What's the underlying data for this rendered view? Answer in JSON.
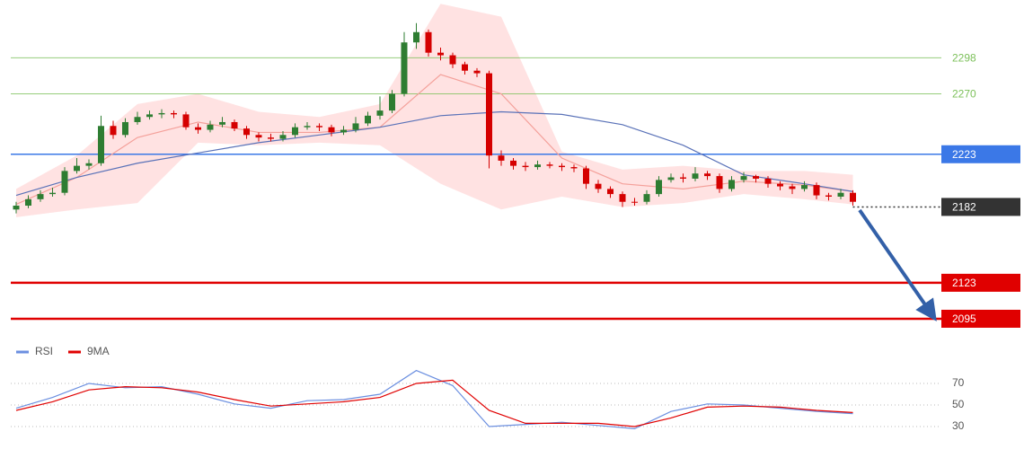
{
  "chart_data": [
    {
      "type": "candlestick",
      "ylim": [
        2081,
        2343
      ],
      "up_color": "#2e7d32",
      "down_color": "#d50000",
      "open": [
        2180,
        2183,
        2188,
        2192,
        2193,
        2210,
        2214,
        2216,
        2245,
        2238,
        2248,
        2252,
        2254,
        2255,
        2254,
        2244,
        2242,
        2246,
        2248,
        2243,
        2238,
        2236,
        2235,
        2238,
        2244,
        2245,
        2244,
        2240,
        2242,
        2247,
        2253,
        2257,
        2270,
        2310,
        2318,
        2302,
        2300,
        2293,
        2288,
        2286,
        2222,
        2218,
        2214,
        2213,
        2215,
        2214,
        2213,
        2212,
        2200,
        2196,
        2192,
        2186,
        2186,
        2192,
        2203,
        2205,
        2204,
        2208,
        2206,
        2196,
        2203,
        2206,
        2204,
        2200,
        2198,
        2196,
        2199,
        2191,
        2190,
        2193
      ],
      "high": [
        2186,
        2191,
        2195,
        2197,
        2213,
        2220,
        2219,
        2253,
        2249,
        2251,
        2256,
        2257,
        2258,
        2257,
        2256,
        2247,
        2249,
        2252,
        2250,
        2245,
        2240,
        2239,
        2241,
        2247,
        2248,
        2247,
        2246,
        2245,
        2252,
        2256,
        2268,
        2273,
        2318,
        2325,
        2320,
        2306,
        2302,
        2295,
        2290,
        2288,
        2226,
        2220,
        2217,
        2218,
        2217,
        2216,
        2215,
        2214,
        2203,
        2198,
        2194,
        2189,
        2195,
        2206,
        2208,
        2208,
        2213,
        2210,
        2208,
        2206,
        2209,
        2207,
        2206,
        2202,
        2200,
        2202,
        2201,
        2193,
        2196,
        2195
      ],
      "low": [
        2177,
        2181,
        2186,
        2190,
        2191,
        2208,
        2211,
        2214,
        2235,
        2236,
        2246,
        2250,
        2251,
        2251,
        2242,
        2239,
        2240,
        2244,
        2241,
        2235,
        2233,
        2233,
        2233,
        2236,
        2242,
        2241,
        2237,
        2238,
        2240,
        2245,
        2250,
        2255,
        2268,
        2305,
        2299,
        2296,
        2290,
        2285,
        2283,
        2212,
        2214,
        2211,
        2210,
        2211,
        2212,
        2210,
        2209,
        2196,
        2193,
        2189,
        2182,
        2183,
        2184,
        2190,
        2201,
        2201,
        2202,
        2203,
        2193,
        2194,
        2201,
        2201,
        2197,
        2195,
        2192,
        2194,
        2188,
        2187,
        2188,
        2183
      ],
      "close": [
        2183,
        2188,
        2192,
        2193,
        2210,
        2214,
        2216,
        2245,
        2238,
        2248,
        2252,
        2254,
        2255,
        2254,
        2244,
        2242,
        2246,
        2248,
        2243,
        2238,
        2236,
        2235,
        2238,
        2244,
        2245,
        2244,
        2240,
        2242,
        2247,
        2253,
        2257,
        2270,
        2310,
        2318,
        2302,
        2300,
        2293,
        2288,
        2286,
        2222,
        2218,
        2214,
        2213,
        2215,
        2214,
        2213,
        2212,
        2200,
        2196,
        2192,
        2186,
        2186,
        2192,
        2203,
        2205,
        2204,
        2208,
        2206,
        2196,
        2203,
        2206,
        2204,
        2200,
        2198,
        2196,
        2199,
        2191,
        2190,
        2193,
        2186
      ],
      "overlays": [
        {
          "kind": "band",
          "color": "#ffd6d6",
          "x": [
            0,
            5,
            10,
            15,
            20,
            25,
            30,
            35,
            40,
            45,
            50,
            55,
            60,
            65,
            69
          ],
          "upper": [
            2196,
            2222,
            2262,
            2270,
            2256,
            2252,
            2262,
            2340,
            2330,
            2225,
            2211,
            2214,
            2210,
            2210,
            2207
          ],
          "lower": [
            2174,
            2180,
            2185,
            2232,
            2230,
            2232,
            2230,
            2200,
            2180,
            2190,
            2182,
            2185,
            2192,
            2188,
            2184
          ]
        },
        {
          "kind": "line",
          "color": "#f4a09a",
          "x": [
            0,
            5,
            10,
            15,
            20,
            25,
            30,
            35,
            40,
            45,
            50,
            55,
            60,
            65,
            69
          ],
          "values": [
            2184,
            2205,
            2236,
            2248,
            2240,
            2240,
            2244,
            2285,
            2270,
            2220,
            2200,
            2196,
            2202,
            2199,
            2194
          ]
        },
        {
          "kind": "line",
          "color": "#5a72b8",
          "x": [
            0,
            5,
            10,
            15,
            20,
            25,
            30,
            35,
            40,
            45,
            50,
            55,
            60,
            65,
            69
          ],
          "values": [
            2191,
            2205,
            2216,
            2224,
            2232,
            2238,
            2244,
            2253,
            2256,
            2254,
            2246,
            2230,
            2207,
            2200,
            2194
          ]
        }
      ],
      "levels": [
        {
          "value": 2298,
          "color": "#7cc05a",
          "style": "text"
        },
        {
          "value": 2270,
          "color": "#7cc05a",
          "style": "text"
        },
        {
          "value": 2223,
          "color": "#3b78e7",
          "style": "box"
        },
        {
          "value": 2182,
          "color": "#333333",
          "style": "box",
          "dashed": true
        },
        {
          "value": 2123,
          "color": "#e00000",
          "style": "box"
        },
        {
          "value": 2095,
          "color": "#e00000",
          "style": "box"
        }
      ]
    },
    {
      "type": "line",
      "ylim": [
        17.5,
        92.5
      ],
      "yticks": [
        30,
        50,
        70
      ],
      "x": [
        0,
        3,
        6,
        9,
        12,
        15,
        18,
        21,
        24,
        27,
        30,
        33,
        36,
        39,
        42,
        45,
        48,
        51,
        54,
        57,
        60,
        63,
        66,
        69
      ],
      "series": [
        {
          "name": "RSI",
          "color": "#6b8fe0",
          "values": [
            47,
            57,
            70,
            66,
            67,
            60,
            51,
            47,
            54,
            55,
            60,
            82,
            68,
            30,
            32,
            34,
            31,
            28,
            44,
            51,
            50,
            47,
            44,
            42
          ]
        },
        {
          "name": "9MA",
          "color": "#e00000",
          "values": [
            45,
            53,
            64,
            67,
            66,
            62,
            55,
            49,
            51,
            53,
            57,
            70,
            73,
            45,
            33,
            33,
            33,
            30,
            38,
            48,
            49,
            48,
            45,
            43
          ]
        }
      ]
    }
  ]
}
